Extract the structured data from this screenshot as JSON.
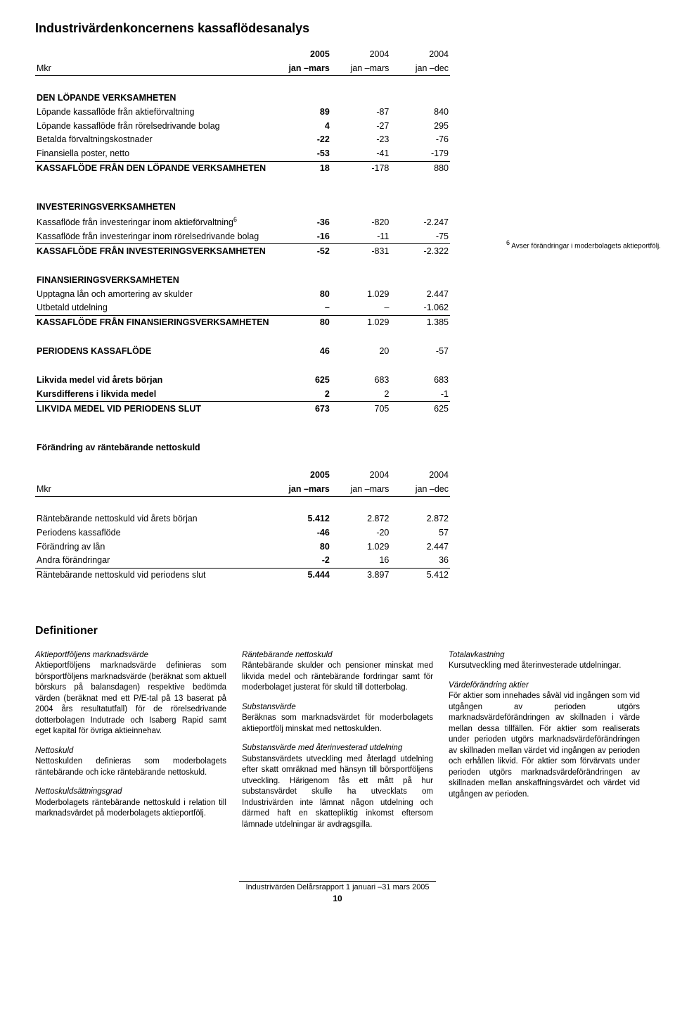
{
  "title": "Industrivärdenkoncernens kassaflödesanalys",
  "header": {
    "unit": "Mkr",
    "y1_top": "2005",
    "y1_bot": "jan –mars",
    "y2_top": "2004",
    "y2_bot": "jan –mars",
    "y3_top": "2004",
    "y3_bot": "jan –dec"
  },
  "s1": {
    "hdr": "DEN LÖPANDE VERKSAMHETEN",
    "r1": {
      "l": "Löpande kassaflöde från aktieförvaltning",
      "v1": "89",
      "v2": "-87",
      "v3": "840"
    },
    "r2": {
      "l": "Löpande kassaflöde från rörelsedrivande bolag",
      "v1": "4",
      "v2": "-27",
      "v3": "295"
    },
    "r3": {
      "l": "Betalda förvaltningskostnader",
      "v1": "-22",
      "v2": "-23",
      "v3": "-76"
    },
    "r4": {
      "l": "Finansiella poster, netto",
      "v1": "-53",
      "v2": "-41",
      "v3": "-179"
    },
    "sum": {
      "l": "KASSAFLÖDE FRÅN DEN LÖPANDE VERKSAMHETEN",
      "v1": "18",
      "v2": "-178",
      "v3": "880"
    }
  },
  "s2": {
    "hdr": "INVESTERINGSVERKSAMHETEN",
    "r1": {
      "l": "Kassaflöde från investeringar inom aktieförvaltning",
      "v1": "-36",
      "v2": "-820",
      "v3": "-2.247"
    },
    "r2": {
      "l": "Kassaflöde från investeringar inom rörelsedrivande bolag",
      "v1": "-16",
      "v2": "-11",
      "v3": "-75"
    },
    "sum": {
      "l": "KASSAFLÖDE FRÅN INVESTERINGSVERKSAMHETEN",
      "v1": "-52",
      "v2": "-831",
      "v3": "-2.322"
    }
  },
  "s3": {
    "hdr": "FINANSIERINGSVERKSAMHETEN",
    "r1": {
      "l": "Upptagna lån och amortering av skulder",
      "v1": "80",
      "v2": "1.029",
      "v3": "2.447"
    },
    "r2": {
      "l": "Utbetald utdelning",
      "v1": "–",
      "v2": "–",
      "v3": "-1.062"
    },
    "sum": {
      "l": "KASSAFLÖDE FRÅN FINANSIERINGSVERKSAMHETEN",
      "v1": "80",
      "v2": "1.029",
      "v3": "1.385"
    }
  },
  "s4": {
    "r1": {
      "l": "PERIODENS KASSAFLÖDE",
      "v1": "46",
      "v2": "20",
      "v3": "-57"
    }
  },
  "s5": {
    "r1": {
      "l": "Likvida medel vid årets början",
      "v1": "625",
      "v2": "683",
      "v3": "683"
    },
    "r2": {
      "l": "Kursdifferens i likvida medel",
      "v1": "2",
      "v2": "2",
      "v3": "-1"
    },
    "sum": {
      "l": "LIKVIDA MEDEL VID PERIODENS SLUT",
      "v1": "673",
      "v2": "705",
      "v3": "625"
    }
  },
  "footnote6": "Avser förändringar i moderbolagets aktieportfölj.",
  "table2": {
    "title": "Förändring av räntebärande nettoskuld",
    "r1": {
      "l": "Räntebärande nettoskuld vid årets början",
      "v1": "5.412",
      "v2": "2.872",
      "v3": "2.872"
    },
    "r2": {
      "l": "Periodens kassaflöde",
      "v1": "-46",
      "v2": "-20",
      "v3": "57"
    },
    "r3": {
      "l": "Förändring av lån",
      "v1": "80",
      "v2": "1.029",
      "v3": "2.447"
    },
    "r4": {
      "l": "Andra förändringar",
      "v1": "-2",
      "v2": "16",
      "v3": "36"
    },
    "sum": {
      "l": "Räntebärande nettoskuld vid periodens slut",
      "v1": "5.444",
      "v2": "3.897",
      "v3": "5.412"
    }
  },
  "defs": {
    "title": "Definitioner",
    "d1t": "Aktieportföljens marknadsvärde",
    "d1b": "Aktieportföljens marknadsvärde definieras som börsportföljens marknadsvärde (beräknat som aktuell börskurs på balansdagen) respektive bedömda värden (beräknat med ett P/E-tal på 13 baserat på 2004 års resultatutfall) för de rörelsedrivande dotterbolagen Indutrade och Isaberg Rapid samt eget kapital för övriga aktieinnehav.",
    "d2t": "Nettoskuld",
    "d2b": "Nettoskulden definieras som moderbolagets räntebärande och icke räntebärande nettoskuld.",
    "d3t": "Nettoskuldsättningsgrad",
    "d3b": "Moderbolagets räntebärande nettoskuld i relation till marknadsvärdet på moderbolagets aktieportfölj.",
    "d4t": "Räntebärande nettoskuld",
    "d4b": "Räntebärande skulder och pensioner minskat med likvida medel och räntebärande fordringar samt för moderbolaget justerat för skuld till dotterbolag.",
    "d5t": "Substansvärde",
    "d5b": "Beräknas som marknadsvärdet för moderbolagets aktieportfölj minskat med nettoskulden.",
    "d6t": "Substansvärde med återinvesterad utdelning",
    "d6b": "Substansvärdets utveckling med återlagd utdelning efter skatt omräknad med hänsyn till börsportföljens utveckling. Härigenom fås ett mått på hur substansvärdet skulle ha utvecklats om Industrivärden inte lämnat någon utdelning och därmed haft en skattepliktig inkomst eftersom lämnade utdelningar är avdragsgilla.",
    "d7t": "Totalavkastning",
    "d7b": "Kursutveckling med återinvesterade utdelningar.",
    "d8t": "Värdeförändring aktier",
    "d8b": "För aktier som innehades såväl vid ingången som vid utgången av perioden utgörs marknadsvärdeförändringen av skillnaden i värde mellan dessa tillfällen. För aktier som realiserats under perioden utgörs marknadsvärdeförändringen av skillnaden mellan värdet vid ingången av perioden och erhållen likvid. För aktier som förvärvats under perioden utgörs marknadsvärdeförändringen av skillnaden mellan anskaffningsvärdet och värdet vid utgången av perioden."
  },
  "footer": {
    "text": "Industrivärden Delårsrapport 1 januari –31 mars 2005",
    "page": "10"
  }
}
